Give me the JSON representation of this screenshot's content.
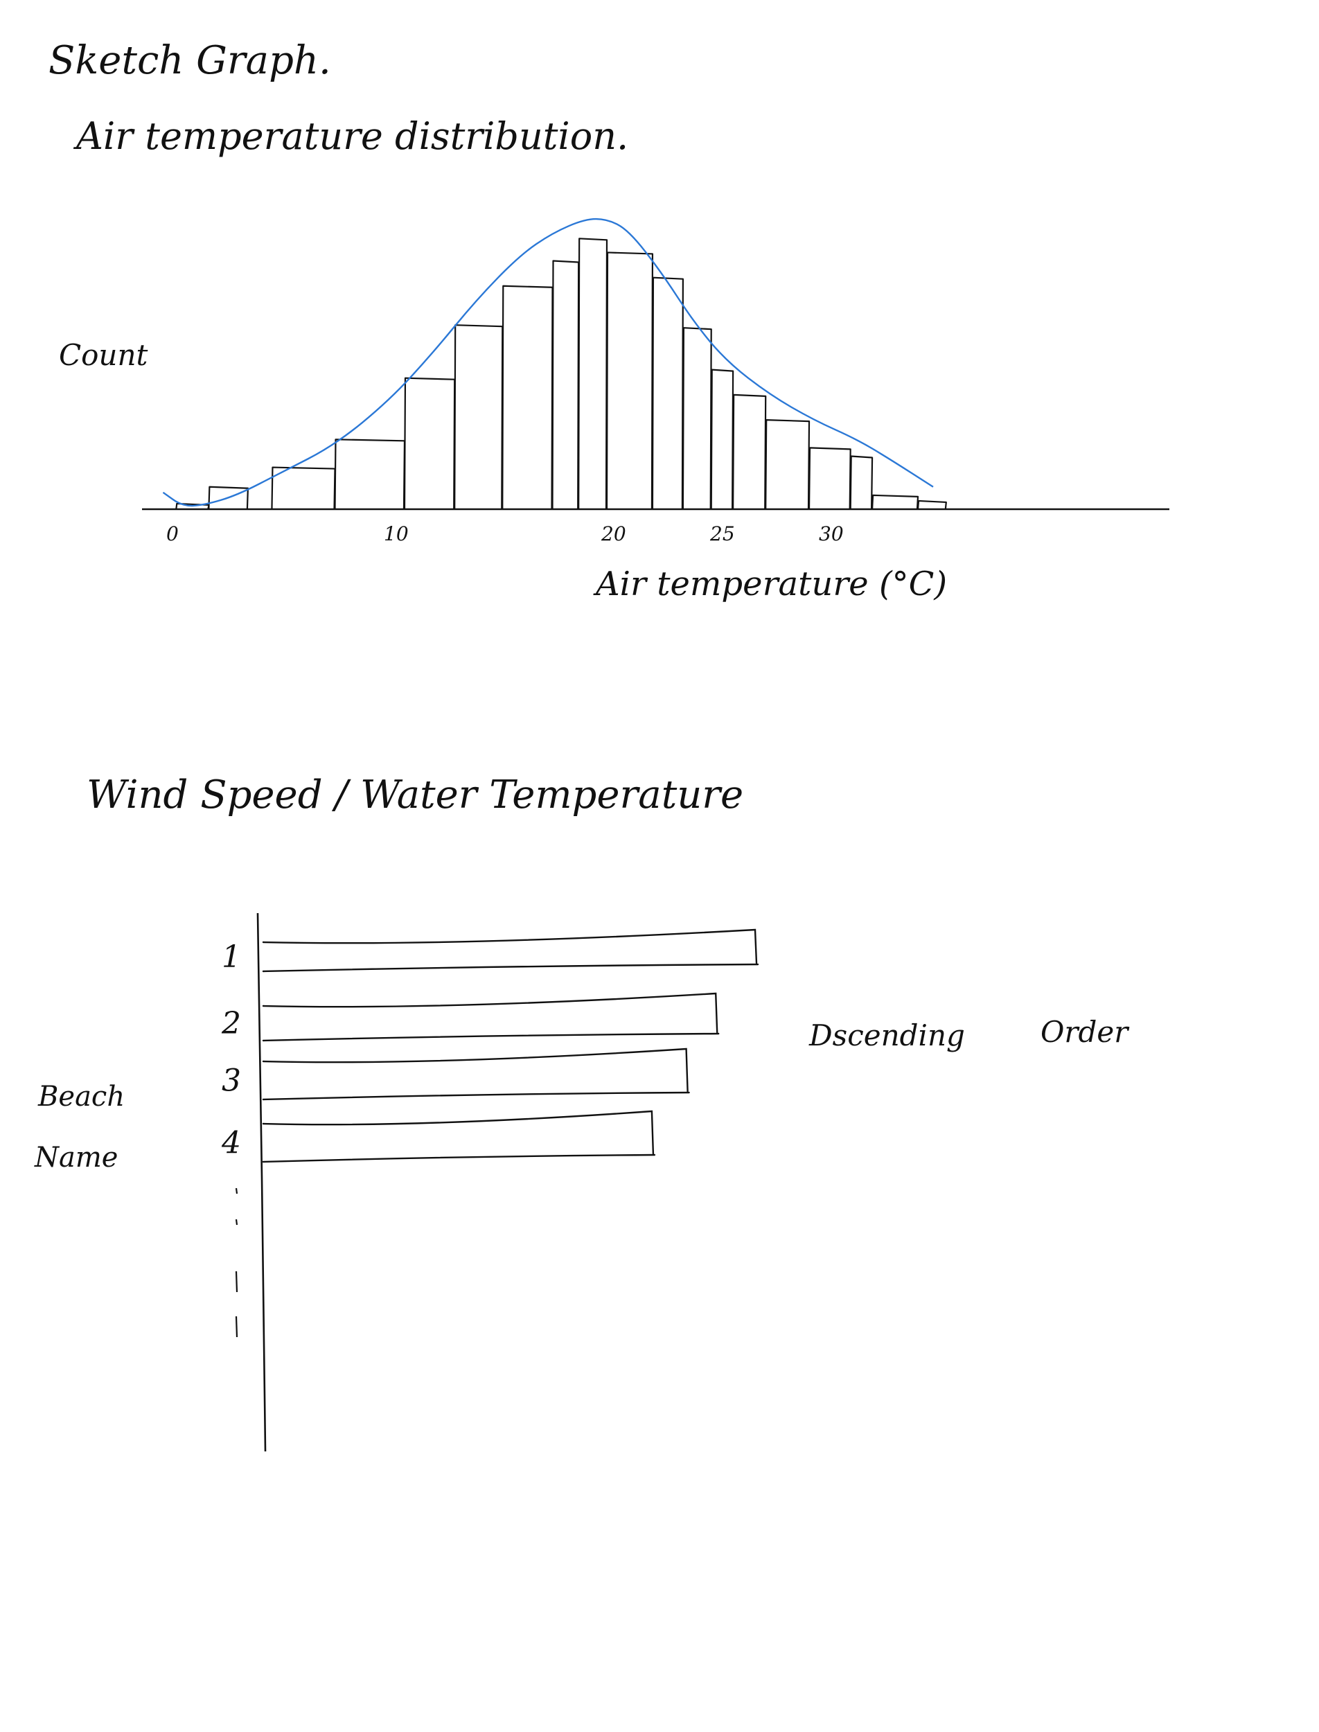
{
  "titles": {
    "sketch": "Sketch Graph.",
    "chart1": "Air temperature distribution.",
    "chart2": "Wind Speed / Water Temperature"
  },
  "notes": {
    "order_word1": "Dscending",
    "order_word2": "Order"
  },
  "chart_data": [
    {
      "type": "bar",
      "title": "Air temperature distribution.",
      "xlabel": "Air temperature (°C)",
      "ylabel": "Count",
      "x_ticks": [
        "0",
        "10",
        "20",
        "25",
        "30"
      ],
      "bins": [
        {
          "x0": 0.2,
          "x1": 1.7,
          "count": 0.2
        },
        {
          "x0": 1.7,
          "x1": 3.5,
          "count": 0.8
        },
        {
          "x0": 4.6,
          "x1": 7.5,
          "count": 1.5
        },
        {
          "x0": 7.5,
          "x1": 10.7,
          "count": 2.5
        },
        {
          "x0": 10.7,
          "x1": 13.0,
          "count": 4.7
        },
        {
          "x0": 13.0,
          "x1": 15.2,
          "count": 6.6
        },
        {
          "x0": 15.2,
          "x1": 17.5,
          "count": 8.0
        },
        {
          "x0": 17.5,
          "x1": 18.7,
          "count": 8.9
        },
        {
          "x0": 18.7,
          "x1": 20.0,
          "count": 9.7
        },
        {
          "x0": 20.0,
          "x1": 22.1,
          "count": 9.2
        },
        {
          "x0": 22.1,
          "x1": 23.5,
          "count": 8.3
        },
        {
          "x0": 23.5,
          "x1": 24.8,
          "count": 6.5
        },
        {
          "x0": 24.8,
          "x1": 25.8,
          "count": 5.0
        },
        {
          "x0": 25.8,
          "x1": 27.3,
          "count": 4.1
        },
        {
          "x0": 27.3,
          "x1": 29.3,
          "count": 3.2
        },
        {
          "x0": 29.3,
          "x1": 31.2,
          "count": 2.2
        },
        {
          "x0": 31.2,
          "x1": 32.2,
          "count": 1.9
        },
        {
          "x0": 32.2,
          "x1": 34.3,
          "count": 0.5
        },
        {
          "x0": 34.3,
          "x1": 35.6,
          "count": 0.3
        }
      ],
      "curve": {
        "color": "#2b78d6",
        "x": [
          -0.4,
          0.5,
          1.5,
          3,
          5,
          7.5,
          10,
          12,
          14,
          16,
          17.5,
          19,
          20,
          21,
          22.5,
          24,
          25.5,
          27.5,
          29.5,
          31.5,
          33,
          35
        ],
        "y": [
          0.6,
          0.1,
          0.15,
          0.5,
          1.3,
          2.3,
          3.9,
          5.6,
          7.5,
          9.1,
          9.9,
          10.4,
          10.4,
          10.0,
          8.5,
          6.7,
          5.3,
          4.1,
          3.2,
          2.5,
          1.8,
          0.8
        ]
      },
      "xlim": [
        -0.5,
        40
      ],
      "ylim": [
        0,
        10.8
      ],
      "grid": false
    },
    {
      "type": "bar",
      "orientation": "horizontal",
      "title": "Wind Speed / Water Temperature",
      "ylabel": "Beach Name",
      "categories": [
        "1",
        "2",
        "3",
        "4"
      ],
      "more_categories_indicated": true,
      "values": [
        100,
        92,
        86,
        79
      ],
      "sort": "descending"
    }
  ]
}
